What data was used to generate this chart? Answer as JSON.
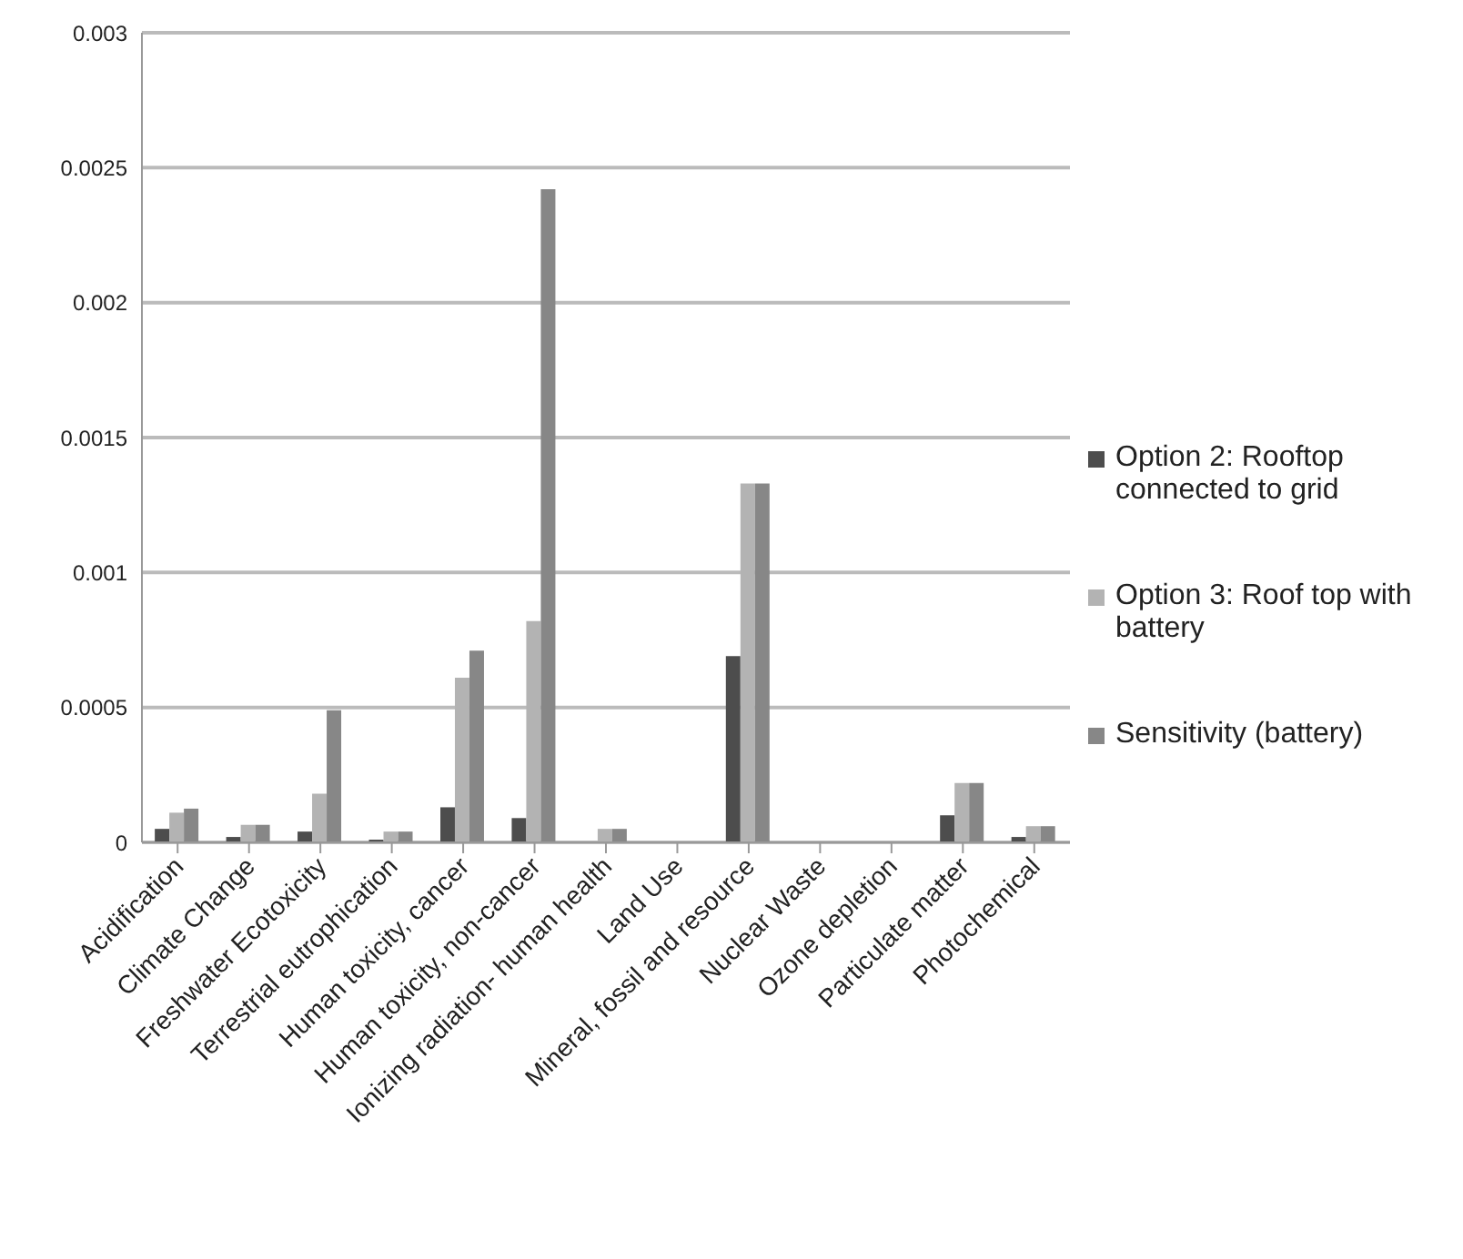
{
  "chart_data": {
    "type": "bar",
    "categories": [
      "Acidification",
      "Climate Change",
      "Freshwater Ecotoxicity",
      "Terrestrial eutrophication",
      "Human toxicity, cancer",
      "Human toxicity, non-cancer",
      "Ionizing radiation- human health",
      "Land Use",
      "Mineral, fossil and resource",
      "Nuclear Waste",
      "Ozone depletion",
      "Particulate matter",
      "Photochemical"
    ],
    "series": [
      {
        "name": "Option 2: Rooftop connected to grid",
        "color": "#4d4d4d",
        "values": [
          5e-05,
          2e-05,
          4e-05,
          1e-05,
          0.00013,
          9e-05,
          0,
          0,
          0.00069,
          0,
          0,
          0.0001,
          2e-05
        ]
      },
      {
        "name": "Option 3: Roof top with battery",
        "color": "#b3b3b3",
        "values": [
          0.00011,
          6.5e-05,
          0.00018,
          4e-05,
          0.00061,
          0.00082,
          5e-05,
          0,
          0.00133,
          0,
          0,
          0.00022,
          6e-05
        ]
      },
      {
        "name": "Sensitivity (battery)",
        "color": "#878787",
        "values": [
          0.000125,
          6.5e-05,
          0.00049,
          4e-05,
          0.00071,
          0.00242,
          5e-05,
          0,
          0.00133,
          0,
          0,
          0.00022,
          6e-05
        ]
      }
    ],
    "ylim": [
      0,
      0.003
    ],
    "yticks": [
      0,
      0.0005,
      0.001,
      0.0015,
      0.002,
      0.0025,
      0.003
    ],
    "grid": "y",
    "legend": "right"
  }
}
